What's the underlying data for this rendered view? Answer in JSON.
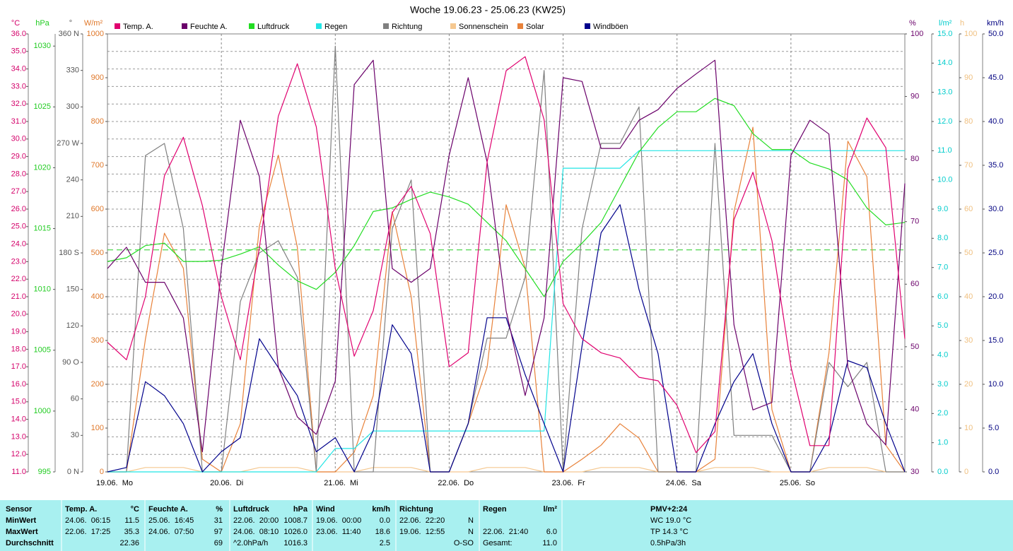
{
  "chart_data": {
    "type": "line",
    "title": "Woche 19.06.23 - 25.06.23 (KW25)",
    "xlim": [
      0,
      168
    ],
    "xticks": [
      {
        "value": 0,
        "label": "19.06.  Mo"
      },
      {
        "value": 24,
        "label": "20.06.  Di"
      },
      {
        "value": 48,
        "label": "21.06.  Mi"
      },
      {
        "value": 72,
        "label": "22.06.  Do"
      },
      {
        "value": 96,
        "label": "23.06.  Fr"
      },
      {
        "value": 120,
        "label": "24.06.  Sa"
      },
      {
        "value": 144,
        "label": "25.06.  So"
      }
    ],
    "grid": true,
    "pressure_reference": 1013.25,
    "axes": [
      {
        "unit": "°C",
        "color": "#d4006a",
        "lim": [
          11,
          36
        ],
        "ticks": [
          {
            "value": 11,
            "label": "11.0"
          },
          {
            "value": 12,
            "label": "12.0"
          },
          {
            "value": 13,
            "label": "13.0"
          },
          {
            "value": 14,
            "label": "14.0"
          },
          {
            "value": 15,
            "label": "15.0"
          },
          {
            "value": 16,
            "label": "16.0"
          },
          {
            "value": 17,
            "label": "17.0"
          },
          {
            "value": 18,
            "label": "18.0"
          },
          {
            "value": 19,
            "label": "19.0"
          },
          {
            "value": 20,
            "label": "20.0"
          },
          {
            "value": 21,
            "label": "21.0"
          },
          {
            "value": 22,
            "label": "22.0"
          },
          {
            "value": 23,
            "label": "23.0"
          },
          {
            "value": 24,
            "label": "24.0"
          },
          {
            "value": 25,
            "label": "25.0"
          },
          {
            "value": 26,
            "label": "26.0"
          },
          {
            "value": 27,
            "label": "27.0"
          },
          {
            "value": 28,
            "label": "28.0"
          },
          {
            "value": 29,
            "label": "29.0"
          },
          {
            "value": 30,
            "label": "30.0"
          },
          {
            "value": 31,
            "label": "31.0"
          },
          {
            "value": 32,
            "label": "32.0"
          },
          {
            "value": 33,
            "label": "33.0"
          },
          {
            "value": 34,
            "label": "34.0"
          },
          {
            "value": 35,
            "label": "35.0"
          },
          {
            "value": 36,
            "label": "36.0"
          }
        ]
      },
      {
        "unit": "hPa",
        "color": "#22cc22",
        "lim": [
          995,
          1031
        ],
        "ticks": [
          995,
          1000,
          1005,
          1010,
          1015,
          1020,
          1025,
          1030
        ]
      },
      {
        "unit": "°",
        "color": "#555555",
        "lim": [
          0,
          360
        ],
        "ticks": [
          {
            "value": 0,
            "label": "0 N"
          },
          30,
          60,
          {
            "value": 90,
            "label": "90 O"
          },
          120,
          150,
          {
            "value": 180,
            "label": "180 S"
          },
          210,
          240,
          {
            "value": 270,
            "label": "270 W"
          },
          300,
          330,
          {
            "value": 360,
            "label": "360 N"
          }
        ]
      },
      {
        "unit": "W/m²",
        "color": "#e0782a",
        "lim": [
          0,
          1000
        ],
        "ticks": [
          0,
          100,
          200,
          300,
          400,
          500,
          600,
          700,
          800,
          900,
          1000
        ]
      },
      {
        "unit": "%",
        "color": "#6a006a",
        "lim": [
          30,
          100
        ],
        "ticks": [
          30,
          40,
          50,
          60,
          70,
          80,
          90,
          100
        ]
      },
      {
        "unit": "l/m²",
        "color": "#00cccc",
        "lim": [
          0,
          15
        ],
        "ticks": [
          {
            "value": 0,
            "label": "0.0"
          },
          {
            "value": 1,
            "label": "1.0"
          },
          {
            "value": 2,
            "label": "2.0"
          },
          {
            "value": 3,
            "label": "3.0"
          },
          {
            "value": 4,
            "label": "4.0"
          },
          {
            "value": 5,
            "label": "5.0"
          },
          {
            "value": 6,
            "label": "6.0"
          },
          {
            "value": 7,
            "label": "7.0"
          },
          {
            "value": 8,
            "label": "8.0"
          },
          {
            "value": 9,
            "label": "9.0"
          },
          {
            "value": 10,
            "label": "10.0"
          },
          {
            "value": 11,
            "label": "11.0"
          },
          {
            "value": 12,
            "label": "12.0"
          },
          {
            "value": 13,
            "label": "13.0"
          },
          {
            "value": 14,
            "label": "14.0"
          },
          {
            "value": 15,
            "label": "15.0"
          }
        ]
      },
      {
        "unit": "h",
        "color": "#f0c080",
        "lim": [
          0,
          100
        ],
        "ticks": [
          0,
          10,
          20,
          30,
          40,
          50,
          60,
          70,
          80,
          90,
          100
        ]
      },
      {
        "unit": "km/h",
        "color": "#000080",
        "lim": [
          0,
          50
        ],
        "ticks": [
          {
            "value": 0,
            "label": "0.0"
          },
          {
            "value": 5,
            "label": "5.0"
          },
          {
            "value": 10,
            "label": "10.0"
          },
          {
            "value": 15,
            "label": "15.0"
          },
          {
            "value": 20,
            "label": "20.0"
          },
          {
            "value": 25,
            "label": "25.0"
          },
          {
            "value": 30,
            "label": "30.0"
          },
          {
            "value": 35,
            "label": "35.0"
          },
          {
            "value": 40,
            "label": "40.0"
          },
          {
            "value": 45,
            "label": "45.0"
          },
          {
            "value": 50,
            "label": "50.0"
          }
        ]
      }
    ],
    "x": [
      0,
      4,
      8,
      12,
      16,
      20,
      24,
      28,
      32,
      36,
      40,
      44,
      48,
      52,
      56,
      60,
      64,
      68,
      72,
      76,
      80,
      84,
      88,
      92,
      96,
      100,
      104,
      108,
      112,
      116,
      120,
      124,
      128,
      132,
      136,
      140,
      144,
      148,
      152,
      156,
      160,
      164,
      168
    ],
    "series": [
      {
        "name": "Temp. A.",
        "color": "#e0006f",
        "axis": 0,
        "values": [
          18.4,
          17.4,
          21.0,
          27.9,
          30.1,
          26.2,
          21.0,
          17.4,
          23.8,
          31.3,
          34.3,
          30.7,
          22.6,
          17.6,
          20.2,
          25.8,
          27.3,
          24.6,
          17.0,
          17.8,
          28.7,
          33.9,
          34.7,
          31.1,
          20.6,
          18.6,
          17.8,
          17.5,
          16.4,
          16.2,
          14.8,
          12.1,
          13.3,
          25.4,
          28.1,
          24.2,
          17.0,
          12.5,
          12.5,
          28.3,
          31.2,
          29.5,
          18.6
        ]
      },
      {
        "name": "Feuchte A.",
        "color": "#6a006a",
        "axis": 4,
        "values": [
          62.5,
          65.9,
          60.3,
          60.3,
          54.6,
          33.2,
          62.5,
          86.2,
          77.2,
          46.7,
          38.8,
          36.0,
          44.5,
          91.9,
          95.8,
          62.5,
          60.3,
          62.5,
          80.6,
          93.0,
          79.5,
          55.7,
          42.2,
          54.6,
          93.0,
          92.4,
          81.7,
          81.7,
          86.2,
          87.9,
          91.3,
          93.6,
          95.8,
          53.5,
          39.9,
          41.1,
          80.6,
          86.2,
          84.0,
          46.7,
          37.7,
          34.3,
          76.1
        ]
      },
      {
        "name": "Luftdruck",
        "color": "#22dd22",
        "axis": 1,
        "values": [
          1012.3,
          1012.6,
          1013.6,
          1013.8,
          1012.3,
          1012.3,
          1012.4,
          1012.9,
          1013.5,
          1012.0,
          1010.7,
          1010.0,
          1011.4,
          1013.6,
          1016.4,
          1016.7,
          1017.4,
          1018.0,
          1017.6,
          1017.0,
          1015.5,
          1014.0,
          1011.7,
          1009.4,
          1012.3,
          1013.8,
          1015.5,
          1018.4,
          1021.3,
          1023.3,
          1024.6,
          1024.6,
          1025.7,
          1025.1,
          1022.8,
          1021.5,
          1021.5,
          1020.4,
          1019.9,
          1019.0,
          1016.7,
          1015.3,
          1015.5
        ]
      },
      {
        "name": "Regen",
        "color": "#22e5e5",
        "axis": 5,
        "values": [
          0,
          0,
          0,
          0,
          0,
          0,
          0,
          0,
          0,
          0,
          0,
          0,
          0.8,
          0.8,
          1.4,
          1.4,
          1.4,
          1.4,
          1.4,
          1.4,
          1.4,
          1.4,
          1.4,
          1.4,
          10.4,
          10.4,
          10.4,
          10.4,
          11.0,
          11.0,
          11.0,
          11.0,
          11.0,
          11.0,
          11.0,
          11.0,
          11.0,
          11.0,
          11.0,
          11.0,
          11.0,
          11.0,
          11.0
        ]
      },
      {
        "name": "Richtung",
        "color": "#808080",
        "axis": 2,
        "values": [
          0,
          0,
          260,
          270,
          200,
          0,
          0,
          140,
          180,
          190,
          160,
          0,
          350,
          0,
          0,
          200,
          240,
          0,
          0,
          40,
          110,
          110,
          160,
          330,
          0,
          200,
          270,
          270,
          300,
          0,
          0,
          0,
          270,
          30,
          30,
          30,
          0,
          0,
          90,
          70,
          90,
          0,
          0
        ]
      },
      {
        "name": "Sonnenschein",
        "color": "#f5c890",
        "axis": 6,
        "values": [
          0,
          0,
          1,
          1,
          1,
          0,
          0,
          0,
          1,
          1,
          1,
          0,
          0,
          0,
          1,
          1,
          1,
          0,
          0,
          0,
          1,
          1,
          1,
          0,
          0,
          0,
          1,
          1,
          1,
          0,
          0,
          0,
          1,
          1,
          1,
          0,
          0,
          0,
          1,
          1,
          1,
          0,
          0
        ]
      },
      {
        "name": "Solar",
        "color": "#e8823a",
        "axis": 3,
        "values": [
          0,
          0,
          303,
          545,
          465,
          29,
          0,
          110,
          561,
          723,
          513,
          0,
          0,
          45,
          174,
          594,
          400,
          0,
          0,
          110,
          239,
          610,
          465,
          0,
          0,
          29,
          61,
          110,
          77,
          0,
          0,
          0,
          29,
          594,
          787,
          142,
          0,
          0,
          271,
          755,
          674,
          61,
          0
        ]
      },
      {
        "name": "Windböen",
        "color": "#00008b",
        "axis": 7,
        "values": [
          0,
          0.5,
          10.3,
          8.7,
          5.5,
          0,
          2.3,
          3.9,
          15.2,
          11.9,
          8.7,
          2.3,
          3.9,
          0,
          4.7,
          16.8,
          13.5,
          0,
          0,
          5.5,
          17.6,
          17.6,
          11.1,
          5.5,
          0,
          14.4,
          27.3,
          30.5,
          20.8,
          13.5,
          0,
          0,
          5.5,
          10.3,
          13.5,
          5.5,
          0,
          0,
          3.9,
          12.7,
          11.9,
          5.5,
          0
        ]
      }
    ]
  },
  "stats": {
    "row_labels": [
      "Sensor",
      "MinWert",
      "MaxWert",
      "Durchschnitt"
    ],
    "columns": [
      {
        "name": "Temp. A.",
        "unit": "°C",
        "min": [
          "24.06.  06:15",
          "11.5"
        ],
        "max": [
          "22.06.  17:25",
          "35.3"
        ],
        "avg": "22.36"
      },
      {
        "name": "Feuchte A.",
        "unit": "%",
        "min": [
          "25.06.  16:45",
          "31"
        ],
        "max": [
          "24.06.  07:50",
          "97"
        ],
        "avg": "69"
      },
      {
        "name": "Luftdruck",
        "unit": "hPa",
        "min": [
          "22.06.  20:00",
          "1008.7"
        ],
        "max": [
          "24.06.  08:10",
          "1026.0"
        ],
        "avg_note": "^2.0hPa/h",
        "avg": "1016.3"
      },
      {
        "name": "Wind",
        "unit": "km/h",
        "min": [
          "19.06.  00:00",
          "0.0"
        ],
        "max": [
          "23.06.  11:40",
          "18.6"
        ],
        "avg": "2.5"
      },
      {
        "name": "Richtung",
        "min": [
          "22.06.  22:20",
          "N"
        ],
        "max": [
          "19.06.  12:55",
          "N"
        ],
        "avg": "O-SO"
      },
      {
        "name": "Regen",
        "unit": "l/m²",
        "max": [
          "22.06.  21:40",
          "6.0"
        ],
        "avg_note": "Gesamt:",
        "avg": "11.0"
      }
    ],
    "pmv": [
      "PMV+2:24",
      "WC 19.0 °C",
      "TP 14.3 °C",
      "0.5hPa/3h"
    ]
  }
}
